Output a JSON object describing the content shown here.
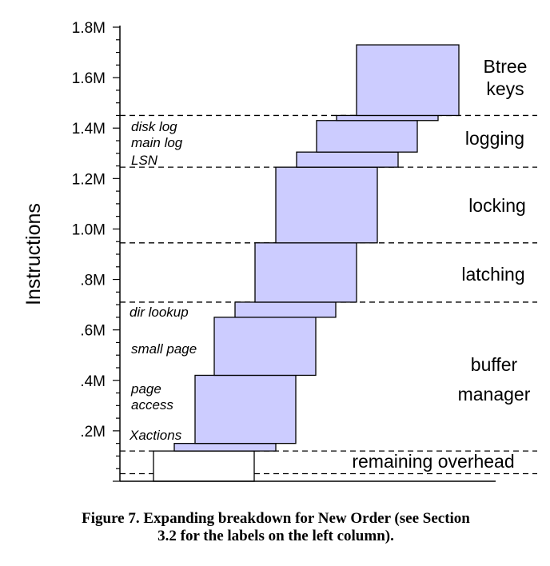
{
  "chart_data": {
    "type": "bar",
    "ylabel": "Instructions",
    "yticks": [
      ".2M",
      ".4M",
      ".6M",
      ".8M",
      "1.0M",
      "1.2M",
      "1.4M",
      "1.6M",
      "1.8M"
    ],
    "ylim": [
      0,
      1.8
    ],
    "left_column_labels": [
      {
        "lines": [
          "disk log",
          "main log",
          "LSN"
        ]
      },
      {
        "lines": [
          "dir lookup"
        ]
      },
      {
        "lines": [
          "small page"
        ]
      },
      {
        "lines": [
          "page",
          "access"
        ]
      },
      {
        "lines": [
          "Xactions"
        ]
      }
    ],
    "right_column_labels": [
      {
        "lines": [
          "Btree",
          "keys"
        ]
      },
      {
        "lines": [
          "logging"
        ]
      },
      {
        "lines": [
          "locking"
        ]
      },
      {
        "lines": [
          "latching"
        ]
      },
      {
        "lines": [
          "buffer",
          "manager"
        ]
      },
      {
        "lines": [
          "remaining overhead"
        ]
      }
    ],
    "boundaries_millions": [
      0.03,
      0.12,
      0.71,
      0.945,
      1.245,
      1.45
    ],
    "segments": [
      {
        "component": "remaining overhead",
        "base": 0,
        "value": 0.12,
        "fill": "#ffffff"
      },
      {
        "component": "Xactions",
        "base": 0.12,
        "value": 0.03,
        "fill": "#ccccff"
      },
      {
        "component": "page access",
        "base": 0.15,
        "value": 0.27,
        "fill": "#ccccff"
      },
      {
        "component": "small page",
        "base": 0.42,
        "value": 0.23,
        "fill": "#ccccff"
      },
      {
        "component": "dir lookup",
        "base": 0.65,
        "value": 0.06,
        "fill": "#ccccff"
      },
      {
        "component": "latching",
        "base": 0.71,
        "value": 0.235,
        "fill": "#ccccff"
      },
      {
        "component": "locking",
        "base": 0.945,
        "value": 0.3,
        "fill": "#ccccff"
      },
      {
        "component": "LSN",
        "base": 1.245,
        "value": 0.06,
        "fill": "#ccccff"
      },
      {
        "component": "main log",
        "base": 1.305,
        "value": 0.125,
        "fill": "#ccccff"
      },
      {
        "component": "disk log",
        "base": 1.43,
        "value": 0.02,
        "fill": "#ccccff"
      },
      {
        "component": "Btree keys",
        "base": 1.45,
        "value": 0.28,
        "fill": "#ccccff"
      }
    ]
  },
  "caption": {
    "line1": "Figure 7.  Expanding breakdown for New Order (see Section",
    "line2": "3.2 for the labels on the left column)."
  }
}
